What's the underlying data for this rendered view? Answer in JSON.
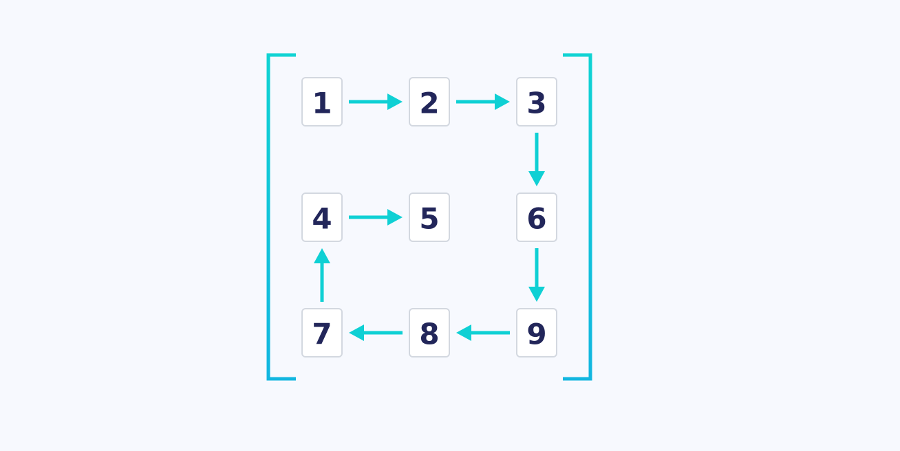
{
  "matrix": {
    "cells": [
      {
        "label": "1",
        "row": 0,
        "col": 0
      },
      {
        "label": "2",
        "row": 0,
        "col": 1
      },
      {
        "label": "3",
        "row": 0,
        "col": 2
      },
      {
        "label": "4",
        "row": 1,
        "col": 0
      },
      {
        "label": "5",
        "row": 1,
        "col": 1
      },
      {
        "label": "6",
        "row": 1,
        "col": 2
      },
      {
        "label": "7",
        "row": 2,
        "col": 0
      },
      {
        "label": "8",
        "row": 2,
        "col": 1
      },
      {
        "label": "9",
        "row": 2,
        "col": 2
      }
    ],
    "spiral_order": [
      "1",
      "2",
      "3",
      "6",
      "9",
      "8",
      "7",
      "4",
      "5"
    ]
  },
  "colors": {
    "background": "#f7f9fe",
    "arrow": "#0fd0d4",
    "bracket_top": "#10d3d3",
    "bracket_bottom": "#12b6e0",
    "cell_border": "#d3d8e0",
    "cell_text": "#22265a"
  }
}
